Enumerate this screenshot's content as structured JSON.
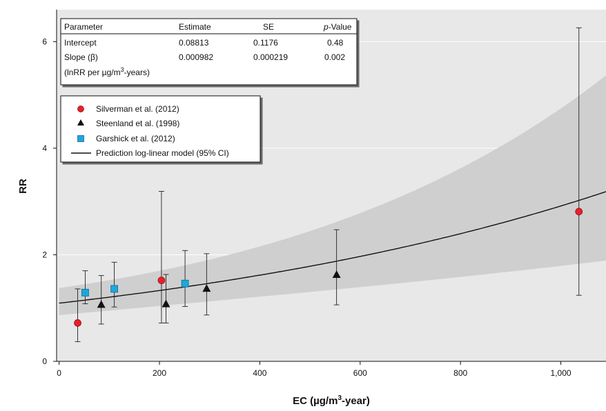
{
  "chart_data": {
    "type": "scatter",
    "xlabel": "EC (µg/m³-year)",
    "ylabel": "RR",
    "xlim": [
      -5,
      1090
    ],
    "ylim": [
      0,
      6.6
    ],
    "x_ticks": [
      0,
      200,
      400,
      600,
      800,
      1000
    ],
    "x_tick_labels": [
      "0",
      "200",
      "400",
      "600",
      "800",
      "1,000"
    ],
    "y_ticks": [
      0,
      2,
      4,
      6
    ],
    "y_tick_labels": [
      "0",
      "2",
      "4",
      "6"
    ],
    "grid": "horizontal",
    "series": [
      {
        "name": "Silverman et al. (2012)",
        "marker": "circle",
        "color": "#e8202a",
        "points": [
          {
            "x": 37,
            "y": 0.72,
            "lo": 0.37,
            "hi": 1.36
          },
          {
            "x": 204,
            "y": 1.52,
            "lo": 0.72,
            "hi": 3.19
          },
          {
            "x": 1036,
            "y": 2.81,
            "lo": 1.24,
            "hi": 6.26
          }
        ]
      },
      {
        "name": "Steenland et al. (1998)",
        "marker": "triangle",
        "color": "#111111",
        "points": [
          {
            "x": 84,
            "y": 1.07,
            "lo": 0.7,
            "hi": 1.61
          },
          {
            "x": 213,
            "y": 1.08,
            "lo": 0.72,
            "hi": 1.63
          },
          {
            "x": 294,
            "y": 1.37,
            "lo": 0.87,
            "hi": 2.02
          },
          {
            "x": 553,
            "y": 1.63,
            "lo": 1.06,
            "hi": 2.47
          }
        ]
      },
      {
        "name": "Garshick et al. (2012)",
        "marker": "square",
        "color": "#1aa8e0",
        "points": [
          {
            "x": 52,
            "y": 1.29,
            "lo": 1.08,
            "hi": 1.7
          },
          {
            "x": 110,
            "y": 1.36,
            "lo": 1.02,
            "hi": 1.86
          },
          {
            "x": 251,
            "y": 1.46,
            "lo": 1.03,
            "hi": 2.08
          }
        ]
      }
    ],
    "model": {
      "name": "Prediction log-linear model (95% CI)",
      "intercept": 0.08813,
      "intercept_se": 0.1176,
      "slope": 0.000982,
      "slope_se": 0.000219,
      "band_color": "#cfcfcf",
      "line_color": "#111111"
    },
    "legend_position": "upper-left",
    "table": {
      "headers": [
        "Parameter",
        "Estimate",
        "SE",
        "p-Value"
      ],
      "header_param": "Parameter",
      "header_estimate": "Estimate",
      "header_se": "SE",
      "header_p_italic": "p",
      "header_p_rest": "-Value",
      "rows": [
        {
          "parameter": "Intercept",
          "estimate": "0.08813",
          "se": "0.1176",
          "p": "0.48"
        },
        {
          "parameter": "Slope (β)",
          "estimate": "0.000982",
          "se": "0.000219",
          "p": "0.002"
        }
      ],
      "slope_unit_prefix": "(lnRR per µg/m",
      "slope_unit_sup": "3",
      "slope_unit_suffix": "-years)"
    },
    "plot_background": "#e8e8e8"
  }
}
